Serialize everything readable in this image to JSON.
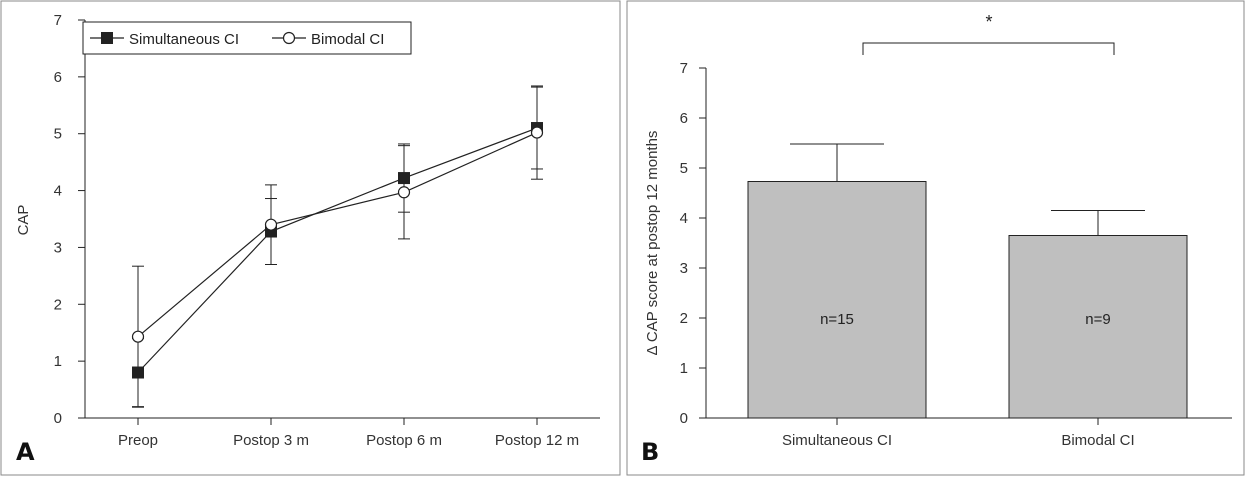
{
  "chart_data": [
    {
      "panel": "A",
      "type": "line",
      "ylabel": "CAP",
      "xlabel": "",
      "ylim": [
        0,
        7
      ],
      "yticks": [
        "0",
        "1",
        "2",
        "3",
        "4",
        "5",
        "6",
        "7"
      ],
      "categories": [
        "Preop",
        "Postop 3 m",
        "Postop 6 m",
        "Postop 12 m"
      ],
      "legend_position": "top-left",
      "series": [
        {
          "name": "Simultaneous CI",
          "marker": "filled-square",
          "values": [
            0.8,
            3.28,
            4.22,
            5.1
          ],
          "error": [
            0.6,
            0.58,
            0.6,
            0.72
          ]
        },
        {
          "name": "Bimodal CI",
          "marker": "open-circle",
          "values": [
            1.43,
            3.4,
            3.97,
            5.02
          ],
          "error": [
            1.24,
            0.7,
            0.82,
            0.82
          ]
        }
      ]
    },
    {
      "panel": "B",
      "type": "bar",
      "ylabel": "Δ CAP score at postop 12 months",
      "xlabel": "",
      "ylim": [
        0,
        7
      ],
      "yticks": [
        "0",
        "1",
        "2",
        "3",
        "4",
        "5",
        "6",
        "7"
      ],
      "categories": [
        "Simultaneous CI",
        "Bimodal CI"
      ],
      "values": [
        4.73,
        3.65
      ],
      "error": [
        0.75,
        0.5
      ],
      "bar_labels": [
        "n=15",
        "n=9"
      ],
      "bar_color": "#bfbfbf",
      "significance": "*"
    }
  ]
}
